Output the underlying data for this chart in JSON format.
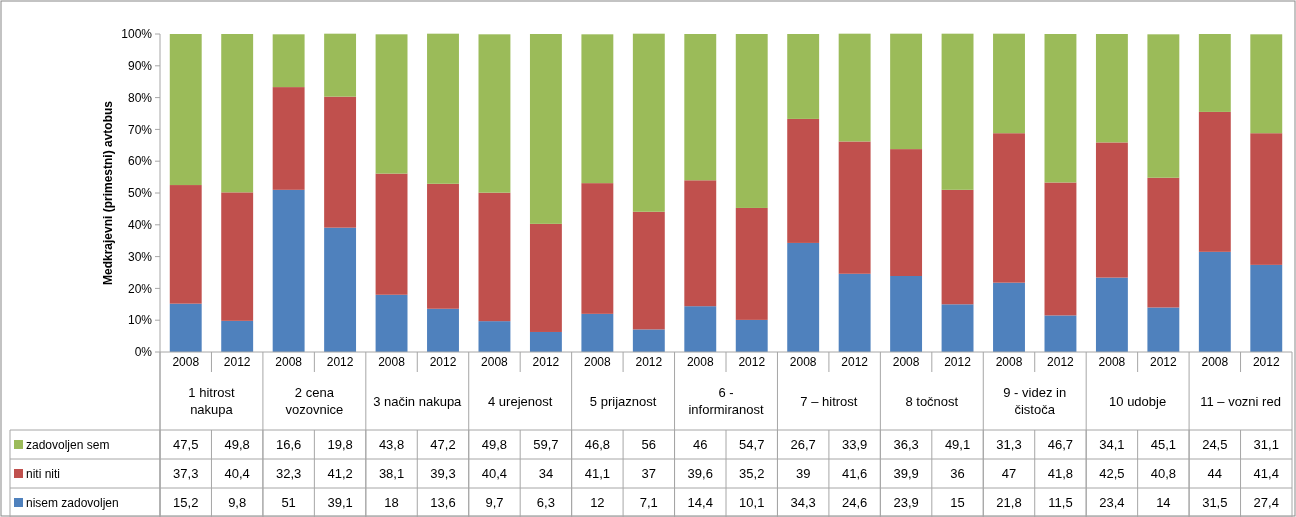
{
  "chart_data": {
    "type": "bar",
    "stacked": true,
    "ylabel": "Medkrajevni (primestni) avtobus",
    "categories": [
      "2008",
      "2012",
      "2008",
      "2012",
      "2008",
      "2012",
      "2008",
      "2012",
      "2008",
      "2012",
      "2008",
      "2012",
      "2008",
      "2012",
      "2008",
      "2012",
      "2008",
      "2012",
      "2008",
      "2012",
      "2008",
      "2012"
    ],
    "annotations": [
      "1  hitrost nakupa",
      "2  cena vozovnice",
      "3  način nakupa",
      "4  urejenost",
      "5  prijaznost",
      "6 - informiranost",
      "7 – hitrost",
      "8  točnost",
      "9 - videz in čistoča",
      "10  udobje",
      "11 – vozni red"
    ],
    "series": [
      {
        "name": "nisem zadovoljen",
        "color": "#4f81bd",
        "values": [
          15.2,
          9.8,
          51,
          39.1,
          18,
          13.6,
          9.7,
          6.3,
          12,
          7.1,
          14.4,
          10.1,
          34.3,
          24.6,
          23.9,
          15,
          21.8,
          11.5,
          23.4,
          14,
          31.5,
          27.4
        ],
        "value_labels": [
          "15,2",
          "9,8",
          "51",
          "39,1",
          "18",
          "13,6",
          "9,7",
          "6,3",
          "12",
          "7,1",
          "14,4",
          "10,1",
          "34,3",
          "24,6",
          "23,9",
          "15",
          "21,8",
          "11,5",
          "23,4",
          "14",
          "31,5",
          "27,4"
        ]
      },
      {
        "name": "niti niti",
        "color": "#c0504d",
        "values": [
          37.3,
          40.4,
          32.3,
          41.2,
          38.1,
          39.3,
          40.4,
          34,
          41.1,
          37,
          39.6,
          35.2,
          39,
          41.6,
          39.9,
          36,
          47,
          41.8,
          42.5,
          40.8,
          44,
          41.4
        ],
        "value_labels": [
          "37,3",
          "40,4",
          "32,3",
          "41,2",
          "38,1",
          "39,3",
          "40,4",
          "34",
          "41,1",
          "37",
          "39,6",
          "35,2",
          "39",
          "41,6",
          "39,9",
          "36",
          "47",
          "41,8",
          "42,5",
          "40,8",
          "44",
          "41,4"
        ]
      },
      {
        "name": "zadovoljen sem",
        "color": "#9bbb59",
        "values": [
          47.5,
          49.8,
          16.6,
          19.8,
          43.8,
          47.2,
          49.8,
          59.7,
          46.8,
          56,
          46,
          54.7,
          26.7,
          33.9,
          36.3,
          49.1,
          31.3,
          46.7,
          34.1,
          45.1,
          24.5,
          31.1
        ],
        "value_labels": [
          "47,5",
          "49,8",
          "16,6",
          "19,8",
          "43,8",
          "47,2",
          "49,8",
          "59,7",
          "46,8",
          "56",
          "46",
          "54,7",
          "26,7",
          "33,9",
          "36,3",
          "49,1",
          "31,3",
          "46,7",
          "34,1",
          "45,1",
          "24,5",
          "31,1"
        ]
      }
    ],
    "ylim": [
      0,
      100
    ],
    "yticks": [
      {
        "value": 0,
        "label": "0%"
      },
      {
        "value": 10,
        "label": "10%"
      },
      {
        "value": 20,
        "label": "20%"
      },
      {
        "value": 30,
        "label": "30%"
      },
      {
        "value": 40,
        "label": "40%"
      },
      {
        "value": 50,
        "label": "50%"
      },
      {
        "value": 60,
        "label": "60%"
      },
      {
        "value": 70,
        "label": "70%"
      },
      {
        "value": 80,
        "label": "80%"
      },
      {
        "value": 90,
        "label": "90%"
      },
      {
        "value": 100,
        "label": "100%"
      }
    ],
    "legend": "bottom"
  }
}
